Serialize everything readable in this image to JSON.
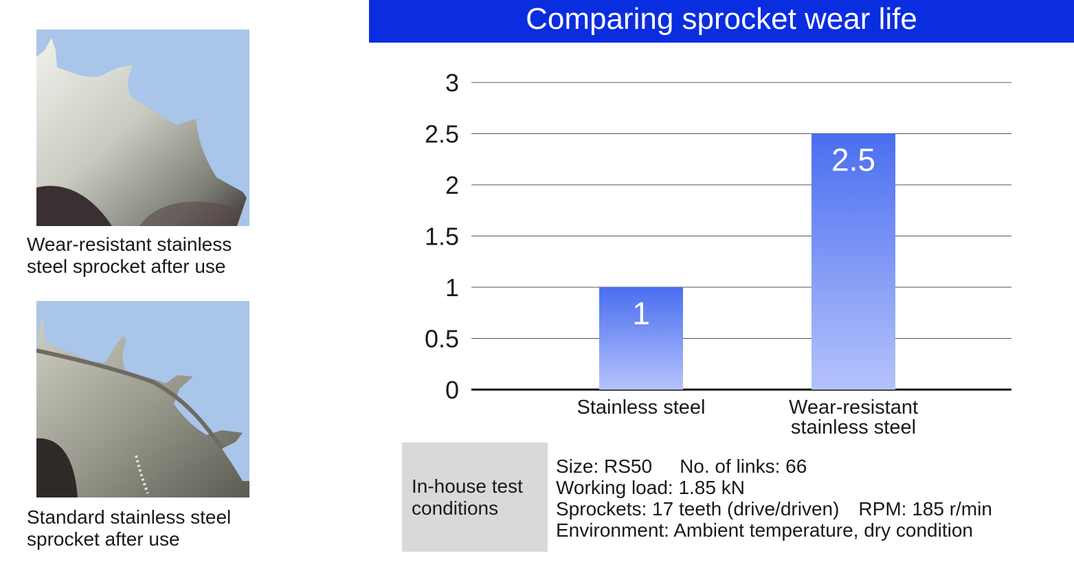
{
  "captions": {
    "photo1": [
      "Wear-resistant stainless",
      "steel sprocket after use"
    ],
    "photo2": [
      "Standard stainless steel",
      "sprocket after use"
    ]
  },
  "photos": {
    "photo1": "wear-resistant-sprocket-photo",
    "photo2": "standard-sprocket-photo"
  },
  "colors": {
    "title_bg": "#0a2de0",
    "bar_top": "#4a6ef0",
    "bar_bottom": "#b5c3fb",
    "conditions_bg": "#d9d9d9"
  },
  "chart_data": {
    "type": "bar",
    "title": "Comparing sprocket wear life",
    "categories": [
      [
        "Stainless steel"
      ],
      [
        "Wear-resistant",
        "stainless steel"
      ]
    ],
    "values": [
      1,
      2.5
    ],
    "data_labels": [
      "1",
      "2.5"
    ],
    "ylim": [
      0,
      3
    ],
    "yticks": [
      0,
      0.5,
      1,
      1.5,
      2,
      2.5,
      3
    ],
    "ytick_labels": [
      "0",
      "0.5",
      "1",
      "1.5",
      "2",
      "2.5",
      "3"
    ],
    "grid": true,
    "xlabel": "",
    "ylabel": ""
  },
  "conditions": {
    "label": [
      "In-house test",
      "conditions"
    ],
    "size": "Size: RS50",
    "links": "No. of links: 66",
    "load": "Working load: 1.85 kN",
    "sprockets": "Sprockets: 17 teeth (drive/driven)",
    "rpm": "RPM: 185 r/min",
    "environment": "Environment: Ambient temperature, dry condition"
  }
}
